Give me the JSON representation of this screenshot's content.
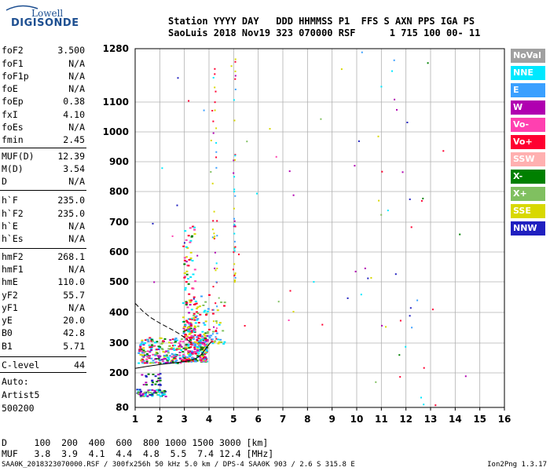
{
  "logo": {
    "top_text": "Lowell",
    "main_text": "DIGISONDE",
    "color": "#1d4f91"
  },
  "header": {
    "line1": "Station YYYY DAY   DDD HHMMSS P1  FFS S AXN PPS IGA PS",
    "line2": "SaoLuis 2018 Nov19 323 070000 RSF      1 715 100 00- 11"
  },
  "params": [
    {
      "label": "foF2",
      "value": "3.500"
    },
    {
      "label": "foF1",
      "value": "N/A"
    },
    {
      "label": "foF1p",
      "value": "N/A"
    },
    {
      "label": "foE",
      "value": "N/A"
    },
    {
      "label": "foEp",
      "value": "0.38"
    },
    {
      "label": "fxI",
      "value": "4.10"
    },
    {
      "label": "foEs",
      "value": "N/A"
    },
    {
      "label": "fmin",
      "value": "2.45"
    },
    {
      "label": "MUF(D)",
      "value": "12.39"
    },
    {
      "label": "M(D)",
      "value": "3.54"
    },
    {
      "label": "D",
      "value": "N/A"
    },
    {
      "label": "h`F",
      "value": "235.0"
    },
    {
      "label": "h`F2",
      "value": "235.0"
    },
    {
      "label": "h`E",
      "value": "N/A"
    },
    {
      "label": "h`Es",
      "value": "N/A"
    },
    {
      "label": "hmF2",
      "value": "268.1"
    },
    {
      "label": "hmF1",
      "value": "N/A"
    },
    {
      "label": "hmE",
      "value": "110.0"
    },
    {
      "label": "yF2",
      "value": "55.7"
    },
    {
      "label": "yF1",
      "value": "N/A"
    },
    {
      "label": "yE",
      "value": "20.0"
    },
    {
      "label": "B0",
      "value": "42.8"
    },
    {
      "label": "B1",
      "value": "5.71"
    },
    {
      "label": "C-level",
      "value": "44"
    }
  ],
  "auto": {
    "line1": "Auto:",
    "line2": "Artist5",
    "line3": "500200"
  },
  "legend": [
    {
      "label": "NoVal",
      "bg": "#a0a0a0",
      "fg": "#ffffff"
    },
    {
      "label": "NNE",
      "bg": "#00e8ff",
      "fg": "#ffffff"
    },
    {
      "label": "E",
      "bg": "#3aa0ff",
      "fg": "#ffffff"
    },
    {
      "label": "W",
      "bg": "#b000b0",
      "fg": "#ffffff"
    },
    {
      "label": "Vo-",
      "bg": "#ff40b0",
      "fg": "#ffffff"
    },
    {
      "label": "Vo+",
      "bg": "#ff0030",
      "fg": "#ffffff"
    },
    {
      "label": "SSW",
      "bg": "#ffb0b0",
      "fg": "#ffffff"
    },
    {
      "label": "X-",
      "bg": "#008000",
      "fg": "#ffffff"
    },
    {
      "label": "X+",
      "bg": "#80c060",
      "fg": "#ffffff"
    },
    {
      "label": "SSE",
      "bg": "#d8d800",
      "fg": "#ffffff"
    },
    {
      "label": "NNW",
      "bg": "#2020c0",
      "fg": "#ffffff"
    }
  ],
  "footer": {
    "d_line": "D     100  200  400  600  800 1000 1500 3000 [km]",
    "muf_line": "MUF   3.8  3.9  4.1  4.4  4.8  5.5  7.4 12.4 [MHz]",
    "credit": "SAA0K_2018323070000.RSF / 300fx256h 50 kHz 5.0 km / DPS-4 SAA0K 903 / 2.6 S 315.8 E",
    "version": "Ion2Png 1.3.17"
  },
  "chart_data": {
    "type": "scatter",
    "x_ticks": [
      "1",
      "2",
      "3",
      "4",
      "5",
      "6",
      "7",
      "8",
      "9",
      "10",
      "11",
      "12",
      "13",
      "14",
      "15",
      "16"
    ],
    "y_ticks": [
      "80",
      "200",
      "300",
      "400",
      "500",
      "600",
      "700",
      "800",
      "900",
      "1000",
      "1100",
      "1280"
    ],
    "xlim": [
      1,
      16
    ],
    "ylim": [
      80,
      1280
    ],
    "grid": true,
    "legend_placement": "right",
    "clusters": [
      {
        "name": "F-trace",
        "f_range": [
          2.9,
          3.9
        ],
        "h_range": [
          240,
          340
        ],
        "n": 260,
        "colors": [
          "#ff0030",
          "#ff0030",
          "#ff40b0",
          "#00e8ff",
          "#3aa0ff",
          "#d8d800",
          "#b000b0",
          "#008000"
        ]
      },
      {
        "name": "F-trace-low",
        "f_range": [
          1.1,
          2.9
        ],
        "h_range": [
          235,
          320
        ],
        "n": 220,
        "colors": [
          "#00e8ff",
          "#3aa0ff",
          "#d8d800",
          "#ff40b0",
          "#80c060",
          "#008000",
          "#ff0030",
          "#b000b0"
        ]
      },
      {
        "name": "spread-F",
        "f_range": [
          2.9,
          3.4
        ],
        "h_range": [
          340,
          700
        ],
        "n": 110,
        "colors": [
          "#ff0030",
          "#b000b0",
          "#d8d800",
          "#008000",
          "#ff40b0",
          "#00e8ff"
        ]
      },
      {
        "name": "mid-tail",
        "f_range": [
          3.3,
          4.6
        ],
        "h_range": [
          300,
          460
        ],
        "n": 70,
        "colors": [
          "#00e8ff",
          "#3aa0ff",
          "#ff0030",
          "#80c060",
          "#d8d800"
        ]
      },
      {
        "name": "low-echo",
        "f_range": [
          1.0,
          2.2
        ],
        "h_range": [
          120,
          145
        ],
        "n": 70,
        "colors": [
          "#2020c0",
          "#b000b0",
          "#008000",
          "#80c060",
          "#00e8ff"
        ]
      },
      {
        "name": "mid-echo",
        "f_range": [
          1.2,
          2.0
        ],
        "h_range": [
          160,
          200
        ],
        "n": 24,
        "colors": [
          "#2020c0",
          "#b000b0",
          "#008000"
        ]
      },
      {
        "name": "vertical-4.2",
        "f_range": [
          4.1,
          4.3
        ],
        "h_range": [
          300,
          1220
        ],
        "n": 45,
        "colors": [
          "#b000b0",
          "#ff0030",
          "#00e8ff",
          "#3aa0ff",
          "#d8d800"
        ]
      },
      {
        "name": "vertical-5.0",
        "f_range": [
          4.95,
          5.05
        ],
        "h_range": [
          500,
          1280
        ],
        "n": 40,
        "colors": [
          "#b000b0",
          "#3aa0ff",
          "#00e8ff",
          "#ff0030",
          "#d8d800"
        ]
      },
      {
        "name": "scatter-high",
        "f_range": [
          1.5,
          12.5
        ],
        "h_range": [
          350,
          1280
        ],
        "n": 55,
        "colors": [
          "#3aa0ff",
          "#00e8ff",
          "#b000b0",
          "#ff40b0",
          "#80c060",
          "#d8d800",
          "#ff0030",
          "#2020c0"
        ]
      },
      {
        "name": "scatter-right",
        "f_range": [
          9.5,
          14.5
        ],
        "h_range": [
          90,
          1280
        ],
        "n": 24,
        "colors": [
          "#00e8ff",
          "#2020c0",
          "#b000b0",
          "#008000",
          "#ff0030",
          "#80c060",
          "#3aa0ff"
        ]
      }
    ],
    "curves": [
      {
        "name": "o-trace-lower",
        "style": "solid",
        "x": [
          1.0,
          1.5,
          2.0,
          2.5,
          3.0,
          3.3,
          3.5,
          3.7,
          3.9,
          4.1
        ],
        "y": [
          215,
          222,
          228,
          233,
          238,
          243,
          250,
          262,
          285,
          305
        ]
      },
      {
        "name": "o-trace-upper",
        "style": "dashed",
        "x": [
          1.0,
          1.3,
          1.6,
          2.0,
          2.4,
          2.8,
          3.1,
          3.3
        ],
        "y": [
          430,
          405,
          385,
          365,
          348,
          330,
          312,
          300
        ]
      }
    ]
  }
}
